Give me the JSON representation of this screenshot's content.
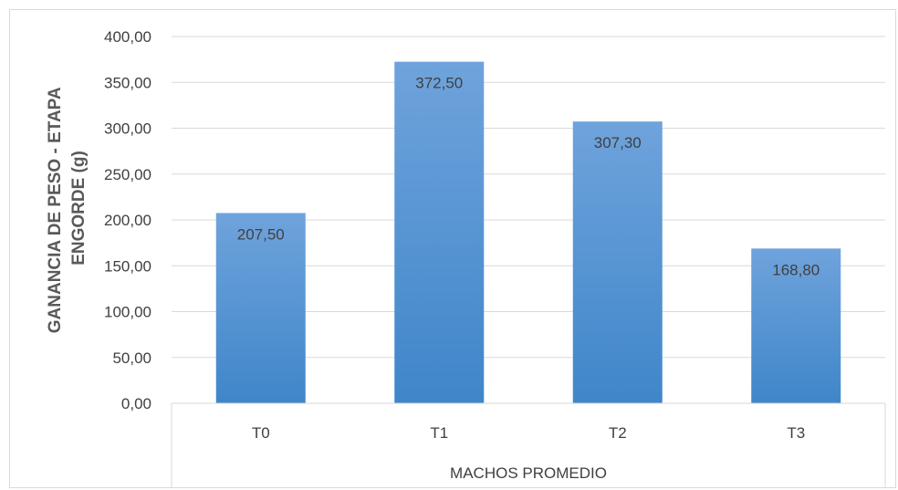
{
  "chart_data": {
    "type": "bar",
    "categories": [
      "T0",
      "T1",
      "T2",
      "T3"
    ],
    "values": [
      207.5,
      372.5,
      307.3,
      168.8
    ],
    "data_labels": [
      "207,50",
      "372,50",
      "307,30",
      "168,80"
    ],
    "yticks": [
      "0,00",
      "50,00",
      "100,00",
      "150,00",
      "200,00",
      "250,00",
      "300,00",
      "350,00",
      "400,00"
    ],
    "ylim": [
      0,
      400
    ],
    "ylabel_line1": "GANANCIA DE PESO - ETAPA",
    "ylabel_line2": "ENGORDE (g)",
    "xlabel": "MACHOS PROMEDIO",
    "grid": true,
    "colors": {
      "bar_top": "#6fa3dc",
      "bar_bottom": "#3f86c9",
      "grid": "#d9d9d9"
    }
  }
}
